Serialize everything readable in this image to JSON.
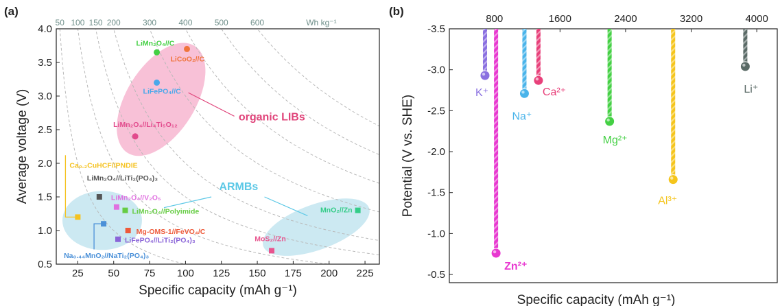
{
  "chart_data": [
    {
      "panel": "(a)",
      "type": "scatter",
      "xlabel": "Specific capacity (mAh g⁻¹)",
      "ylabel": "Average voltage (V)",
      "xlim": [
        10,
        235
      ],
      "ylim": [
        0.5,
        4.0
      ],
      "x_ticks": [
        25,
        50,
        75,
        100,
        125,
        150,
        175,
        200,
        225
      ],
      "y_ticks": [
        0.5,
        1.0,
        1.5,
        2.0,
        2.5,
        3.0,
        3.5,
        4.0
      ],
      "energy_density_contours_wh_kg": [
        50,
        100,
        150,
        200,
        300,
        400,
        500,
        600
      ],
      "energy_density_unit": "Wh kg⁻¹",
      "groups": [
        {
          "label": "organic LIBs",
          "color": "#e0447a",
          "shade": "#f7b6d0"
        },
        {
          "label": "ARMBs",
          "color": "#5cc8e6",
          "shade": "#bfe3ef"
        }
      ],
      "points": [
        {
          "label": "LiMn₂O₄//C",
          "x": 80,
          "y": 3.65,
          "color": "#44d044"
        },
        {
          "label": "LiCoO₂//C",
          "x": 101,
          "y": 3.7,
          "color": "#f0743c"
        },
        {
          "label": "LiFePO₄//C",
          "x": 80,
          "y": 3.2,
          "color": "#4aa8ea"
        },
        {
          "label": "LiMn₂O₄//Li₄Ti₅O₁₂",
          "x": 65,
          "y": 2.4,
          "color": "#e24a8c"
        },
        {
          "label": "Ca₀.₂CuHCF//PNDIE",
          "x": 25,
          "y": 1.2,
          "color": "#f5c220"
        },
        {
          "label": "LiMn₂O₄//LiTi₂(PO₄)₃",
          "x": 40,
          "y": 1.5,
          "color": "#555555"
        },
        {
          "label": "LiMn₂O₄//V₂O₅",
          "x": 52,
          "y": 1.35,
          "color": "#e070e0"
        },
        {
          "label": "LiMn₂O₄//Polyimide",
          "x": 58,
          "y": 1.3,
          "color": "#66cc44"
        },
        {
          "label": "Mg-OMS-1//FeVO₄/C",
          "x": 60,
          "y": 1.0,
          "color": "#ee5a3a"
        },
        {
          "label": "LiFePO₄//LiTi₂(PO₄)₃",
          "x": 53,
          "y": 0.87,
          "color": "#8a64d8"
        },
        {
          "label": "Na₀.₄₄MnO₂//NaTi₂(PO₄)₃",
          "x": 43,
          "y": 1.1,
          "color": "#4a90d8"
        },
        {
          "label": "MnO₂//Zn",
          "x": 220,
          "y": 1.3,
          "color": "#33cc88"
        },
        {
          "label": "MoS₂//Zn",
          "x": 160,
          "y": 0.7,
          "color": "#e8548e"
        }
      ]
    },
    {
      "panel": "(b)",
      "type": "bar",
      "xlabel": "Specific capacity (mAh g⁻¹)",
      "ylabel": "Potential (V vs. SHE)",
      "xlim": [
        250,
        4250
      ],
      "ylim": [
        -3.5,
        -0.4
      ],
      "x_ticks": [
        800,
        1600,
        2400,
        3200,
        4000
      ],
      "y_ticks": [
        -3.5,
        -3.0,
        -2.5,
        -2.0,
        -1.5,
        -1.0,
        -0.5
      ],
      "ions": [
        {
          "label": "K⁺",
          "capacity": 685,
          "potential": -2.93,
          "color": "#8a70e0"
        },
        {
          "label": "Zn²⁺",
          "capacity": 820,
          "potential": -0.76,
          "color": "#e838d0"
        },
        {
          "label": "Na⁺",
          "capacity": 1166,
          "potential": -2.71,
          "color": "#4ab4ea"
        },
        {
          "label": "Ca²⁺",
          "capacity": 1337,
          "potential": -2.87,
          "color": "#e8407a"
        },
        {
          "label": "Mg²⁺",
          "capacity": 2205,
          "potential": -2.37,
          "color": "#44d044"
        },
        {
          "label": "Al³⁺",
          "capacity": 2980,
          "potential": -1.66,
          "color": "#f5c51c"
        },
        {
          "label": "Li⁺",
          "capacity": 3860,
          "potential": -3.04,
          "color": "#5a6a66"
        }
      ]
    }
  ]
}
